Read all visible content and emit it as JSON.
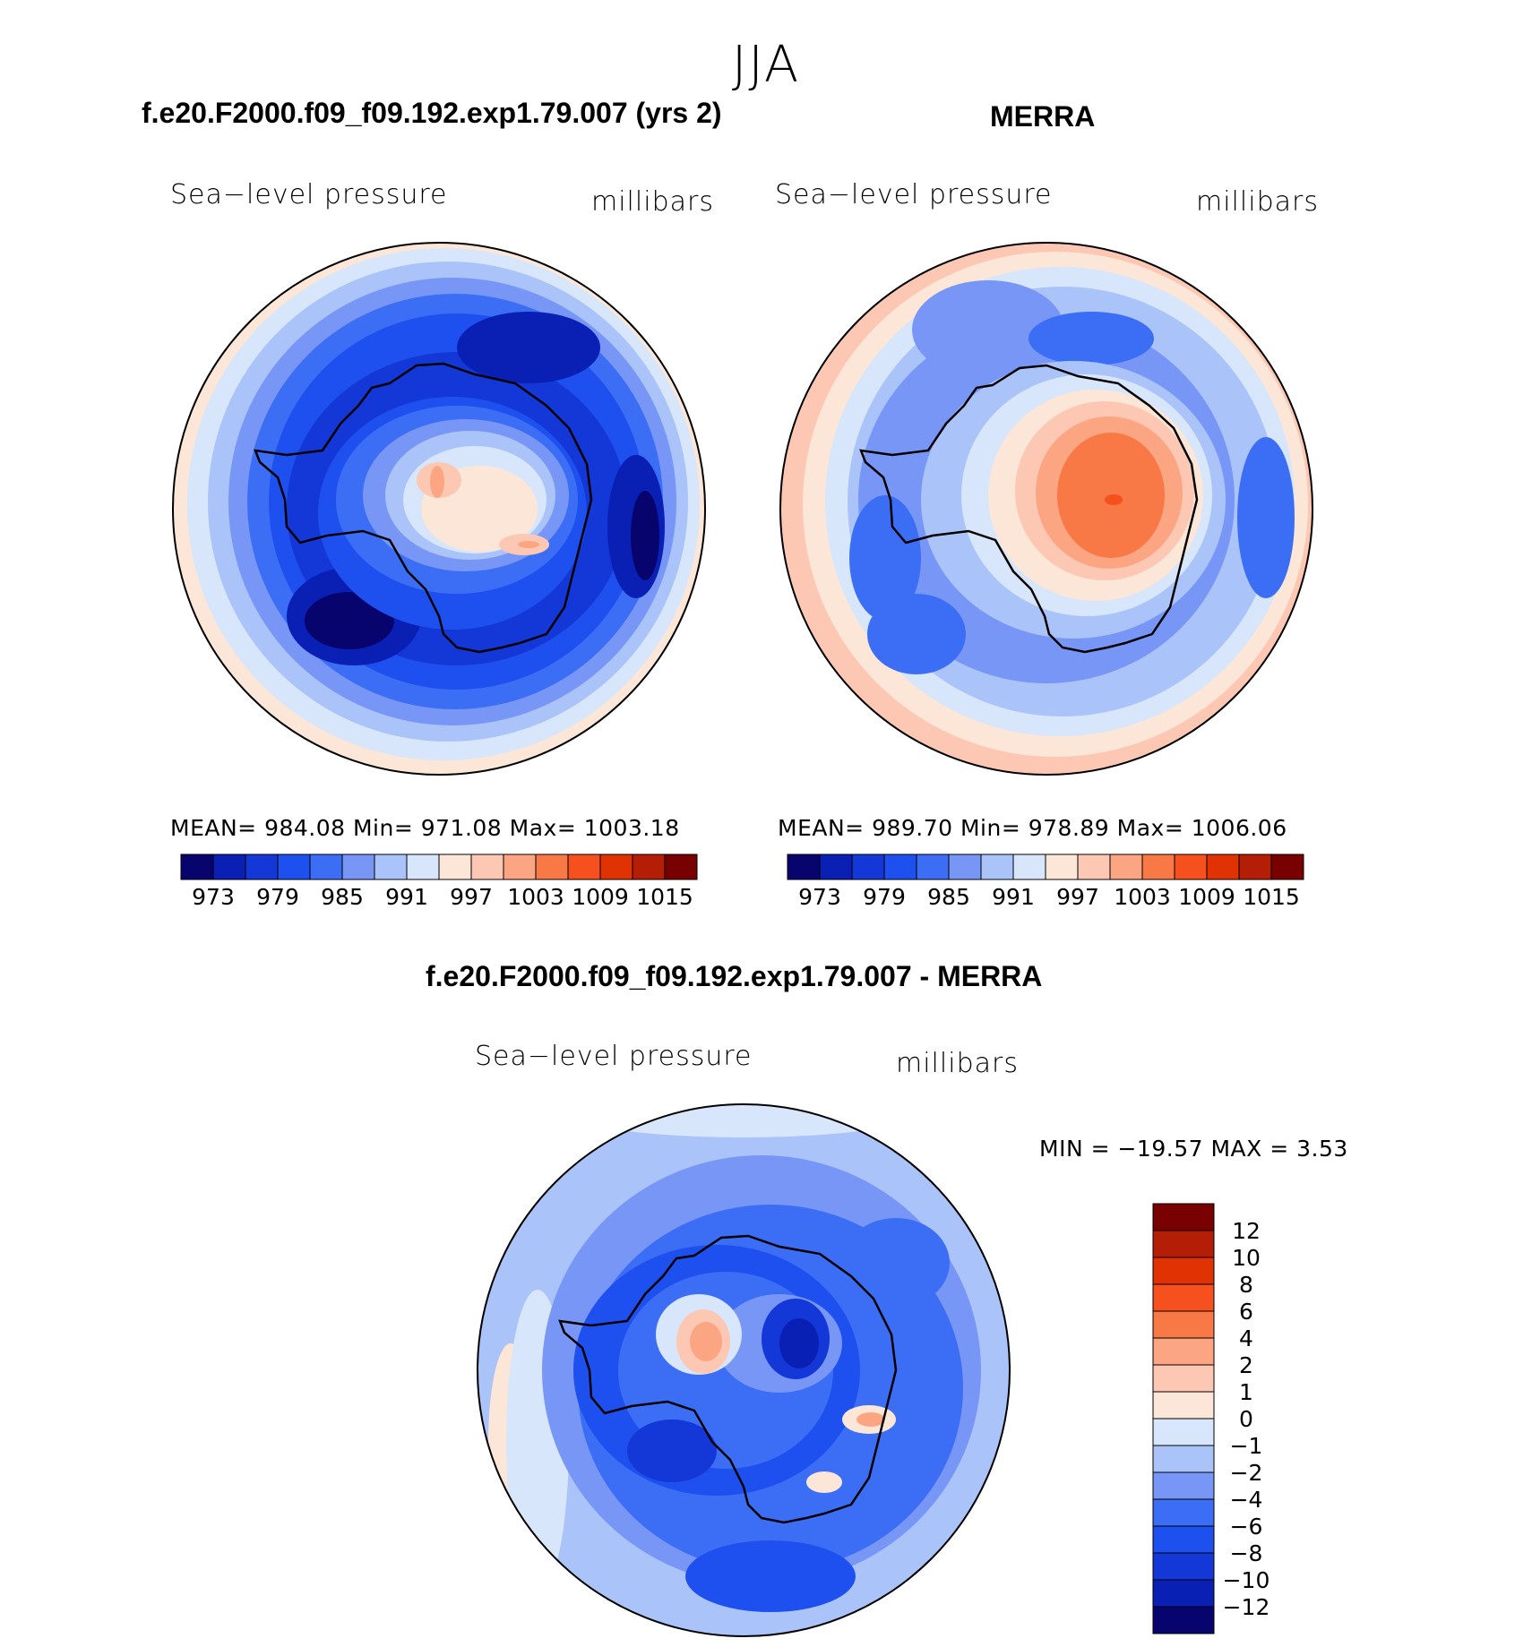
{
  "season": "JJA",
  "panels": [
    {
      "title": "f.e20.F2000.f09_f09.192.exp1.79.007 (yrs 2)",
      "variable": "Sea−level pressure",
      "units": "millibars",
      "stats": "MEAN= 984.08   Min= 971.08   Max= 1003.18"
    },
    {
      "title": "MERRA",
      "variable": "Sea−level pressure",
      "units": "millibars",
      "stats": "MEAN= 989.70   Min= 978.89   Max= 1006.06"
    }
  ],
  "abs_colorbar": {
    "colors": [
      "#08046e",
      "#0a1fb4",
      "#1437d8",
      "#1e50f0",
      "#3c6ef5",
      "#7896f5",
      "#aac3f8",
      "#d7e6fb",
      "#fbe6d7",
      "#fcc8b4",
      "#fba582",
      "#f87846",
      "#f5501e",
      "#e13204",
      "#b41e06",
      "#780000"
    ],
    "tick_labels": [
      "973",
      "979",
      "985",
      "991",
      "997",
      "1003",
      "1009",
      "1015"
    ]
  },
  "diff_panel": {
    "title": "f.e20.F2000.f09_f09.192.exp1.79.007 - MERRA",
    "variable": "Sea−level pressure",
    "units": "millibars",
    "stats": "MIN = −19.57 MAX =    3.53"
  },
  "diff_colorbar": {
    "colors_top_to_bottom": [
      "#780000",
      "#b41e06",
      "#e13204",
      "#f5501e",
      "#f87846",
      "#fba582",
      "#fcc8b4",
      "#fbe6d7",
      "#d7e6fb",
      "#aac3f8",
      "#7896f5",
      "#3c6ef5",
      "#1e50f0",
      "#1437d8",
      "#0a1fb4",
      "#08046e"
    ],
    "tick_labels": [
      "12",
      "10",
      "8",
      "6",
      "4",
      "2",
      "1",
      "0",
      "−1",
      "−2",
      "−4",
      "−6",
      "−8",
      "−10",
      "−12"
    ]
  }
}
